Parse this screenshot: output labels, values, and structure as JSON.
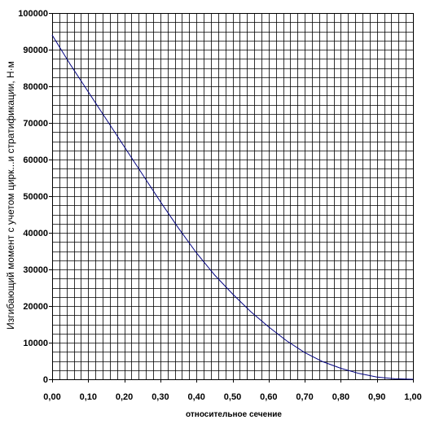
{
  "chart_data": {
    "type": "line",
    "title": "",
    "xlabel": "относительное сечение",
    "ylabel": "Изгибающий момент с учетом цирк...и стратификации, Н·м",
    "xlim": [
      0,
      1
    ],
    "ylim": [
      0,
      100000
    ],
    "x_ticks": [
      "0,00",
      "0,10",
      "0,20",
      "0,30",
      "0,40",
      "0,50",
      "0,60",
      "0,70",
      "0,80",
      "0,90",
      "1,00"
    ],
    "y_ticks": [
      "0",
      "10000",
      "20000",
      "30000",
      "40000",
      "50000",
      "60000",
      "70000",
      "80000",
      "90000",
      "100000"
    ],
    "grid": true,
    "minor_grid_x_step": 0.02,
    "minor_grid_y_step": 2500,
    "series": [
      {
        "color": "#000080",
        "x": [
          0.0,
          0.05,
          0.1,
          0.15,
          0.2,
          0.25,
          0.3,
          0.35,
          0.4,
          0.45,
          0.5,
          0.55,
          0.6,
          0.65,
          0.7,
          0.75,
          0.8,
          0.85,
          0.9,
          0.95,
          1.0
        ],
        "y": [
          94000,
          86000,
          78500,
          71000,
          63500,
          56000,
          48500,
          41300,
          34500,
          28500,
          23300,
          18500,
          14300,
          10500,
          7300,
          4800,
          3000,
          1600,
          600,
          150,
          0
        ]
      }
    ]
  }
}
